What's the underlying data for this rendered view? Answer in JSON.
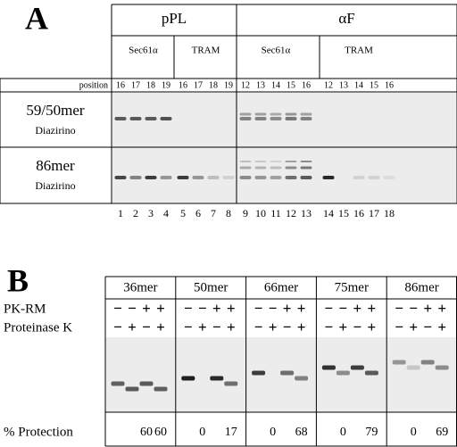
{
  "panel_a": {
    "label": "A",
    "groups": [
      {
        "name": "pPL",
        "subgroups": [
          {
            "name": "Sec61α",
            "positions": [
              16,
              17,
              18,
              19
            ]
          },
          {
            "name": "TRAM",
            "positions": [
              16,
              17,
              18,
              19
            ]
          }
        ]
      },
      {
        "name": "αF",
        "subgroups": [
          {
            "name": "Sec61α",
            "positions": [
              12,
              13,
              14,
              15,
              16
            ]
          },
          {
            "name": "TRAM",
            "positions": [
              12,
              13,
              14,
              15,
              16
            ]
          }
        ]
      }
    ],
    "position_label": "position",
    "rows": [
      {
        "name": "59/50mer",
        "sub": "Diazirino"
      },
      {
        "name": "86mer",
        "sub": "Diazirino"
      }
    ],
    "lanes": [
      1,
      2,
      3,
      4,
      5,
      6,
      7,
      8,
      9,
      10,
      11,
      12,
      13,
      14,
      15,
      16,
      17,
      18
    ]
  },
  "panel_b": {
    "label": "B",
    "pk_rm_label": "PK-RM",
    "proteinase_label": "Proteinase K",
    "protection_label": "% Protection",
    "pk_rm": [
      "−",
      "−",
      "+",
      "+"
    ],
    "proteinase": [
      "−",
      "+",
      "−",
      "+"
    ],
    "constructs": [
      {
        "name": "36mer",
        "protection": [
          null,
          null,
          60,
          60
        ]
      },
      {
        "name": "50mer",
        "protection": [
          null,
          0,
          null,
          17
        ]
      },
      {
        "name": "66mer",
        "protection": [
          null,
          0,
          null,
          68
        ]
      },
      {
        "name": "75mer",
        "protection": [
          null,
          0,
          null,
          79
        ]
      },
      {
        "name": "86mer",
        "protection": [
          null,
          0,
          null,
          69
        ]
      }
    ]
  }
}
